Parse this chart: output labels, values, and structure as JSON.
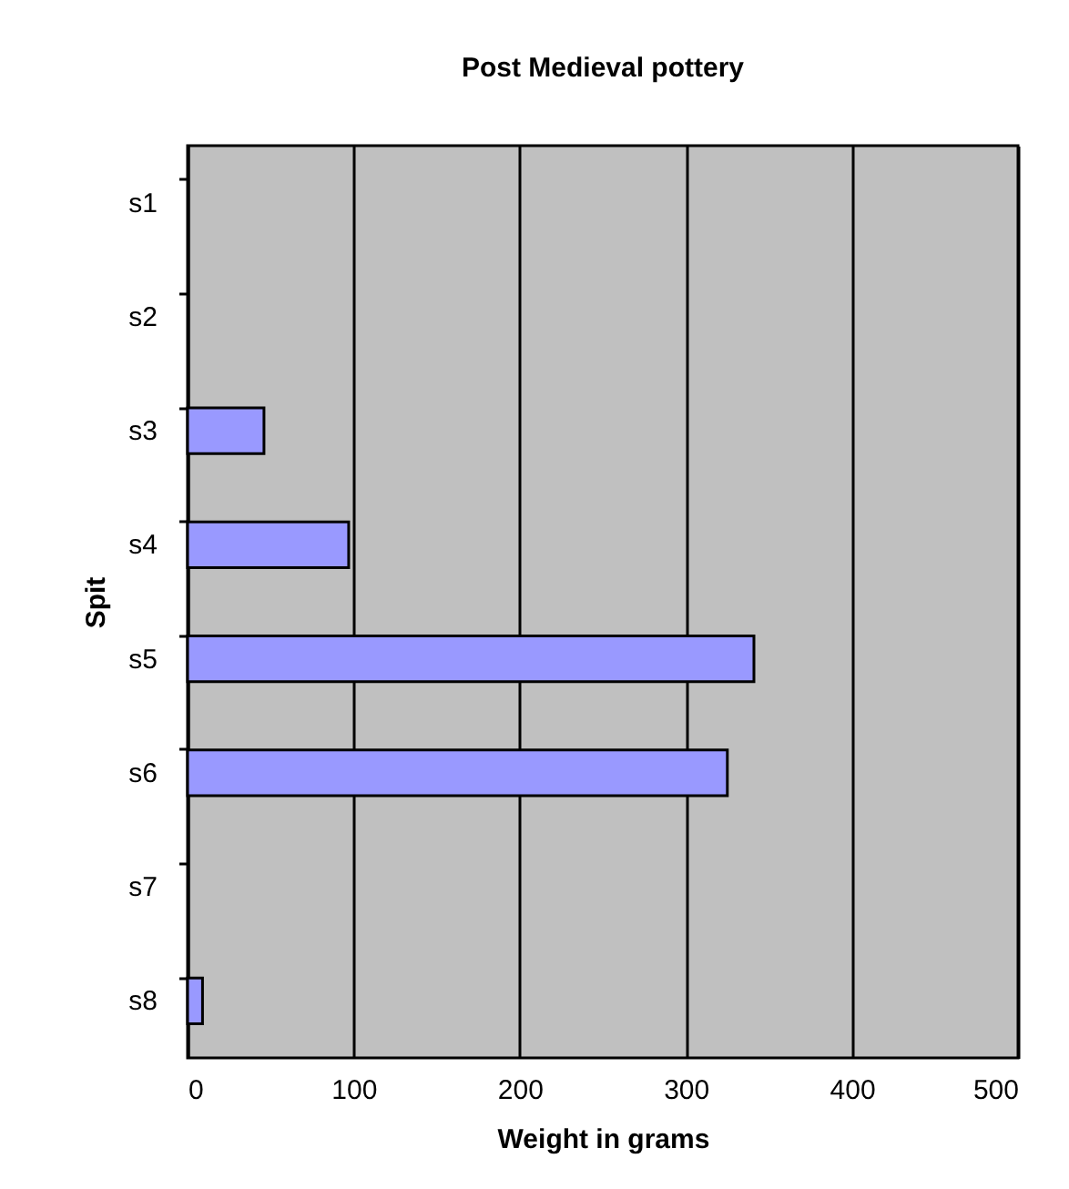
{
  "chart_data": {
    "type": "bar",
    "orientation": "horizontal",
    "title": "Post Medieval pottery",
    "xlabel": "Weight in grams",
    "ylabel": "Spit",
    "categories": [
      "s1",
      "s2",
      "s3",
      "s4",
      "s5",
      "s6",
      "s7",
      "s8"
    ],
    "values": [
      null,
      null,
      46,
      97,
      341,
      325,
      null,
      9
    ],
    "color": "#9999ff",
    "xlim": [
      0,
      500
    ],
    "xticks": [
      0,
      100,
      200,
      300,
      400,
      500
    ],
    "grid": "x"
  }
}
